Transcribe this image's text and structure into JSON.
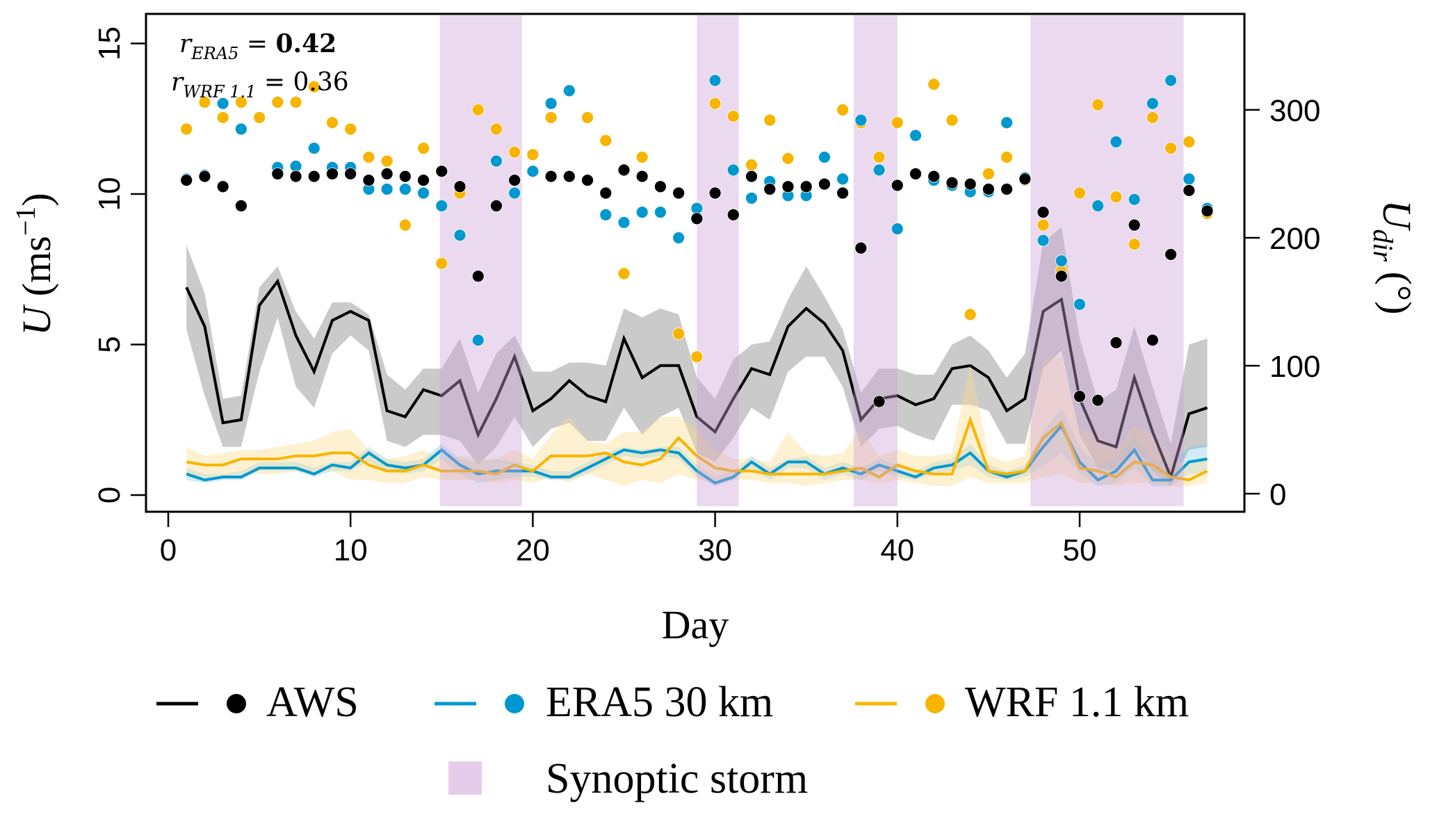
{
  "chart_data": {
    "type": "line",
    "title": "",
    "xlabel": "Day",
    "ylabel": "U (ms⁻¹)",
    "ylabel_right": "U_dir (°)",
    "xlim": [
      -1,
      59.5
    ],
    "ylim": [
      -0.5,
      15.5
    ],
    "ylim_right": [
      -20,
      380
    ],
    "x_ticks": [
      0,
      10,
      20,
      30,
      40,
      50
    ],
    "y_ticks": [
      0,
      5,
      10,
      15
    ],
    "y_ticks_right": [
      0,
      100,
      200,
      300
    ],
    "grid": false,
    "legend_position": "bottom",
    "annotations": [
      {
        "label_base": "r",
        "label_sub": "ERA5",
        "value": "0.42",
        "bold": true
      },
      {
        "label_base": "r",
        "label_sub": "WRF 1.1",
        "value": "0.36",
        "bold": false
      }
    ],
    "storm_periods": [
      [
        14.9,
        19.4
      ],
      [
        29.0,
        31.3
      ],
      [
        37.6,
        40.0
      ],
      [
        47.3,
        55.7
      ]
    ],
    "x": [
      1,
      2,
      3,
      4,
      5,
      6,
      7,
      8,
      9,
      10,
      11,
      12,
      13,
      14,
      15,
      16,
      17,
      18,
      19,
      20,
      21,
      22,
      23,
      24,
      25,
      26,
      27,
      28,
      29,
      30,
      31,
      32,
      33,
      34,
      35,
      36,
      37,
      38,
      39,
      40,
      41,
      42,
      43,
      44,
      45,
      46,
      47,
      48,
      49,
      50,
      51,
      52,
      53,
      54,
      55,
      56,
      57
    ],
    "series": [
      {
        "name": "AWS",
        "color": "#000000",
        "speed": [
          6.9,
          5.6,
          2.4,
          2.5,
          6.3,
          7.1,
          5.3,
          4.1,
          5.8,
          6.1,
          5.8,
          2.8,
          2.6,
          3.5,
          3.3,
          3.8,
          2.0,
          3.2,
          4.6,
          2.8,
          3.2,
          3.8,
          3.3,
          3.1,
          5.2,
          3.9,
          4.3,
          4.3,
          2.6,
          2.1,
          3.2,
          4.2,
          4.0,
          5.6,
          6.2,
          5.7,
          4.8,
          2.5,
          3.2,
          3.3,
          3.0,
          3.2,
          4.2,
          4.3,
          3.9,
          2.8,
          3.2,
          6.1,
          6.5,
          3.2,
          1.8,
          1.6,
          3.9,
          2.1,
          0.6,
          2.7,
          2.9
        ],
        "speed_lower": [
          5.5,
          3.3,
          1.6,
          1.6,
          4.1,
          5.9,
          3.6,
          2.9,
          4.7,
          5.3,
          4.8,
          1.8,
          1.6,
          2.0,
          2.0,
          1.8,
          1.0,
          1.6,
          2.6,
          1.6,
          2.2,
          2.4,
          1.8,
          1.8,
          2.9,
          2.0,
          2.6,
          2.9,
          1.4,
          1.1,
          1.9,
          2.9,
          2.5,
          4.1,
          4.6,
          4.6,
          3.6,
          1.6,
          2.2,
          2.3,
          2.0,
          1.8,
          3.0,
          3.0,
          2.8,
          1.7,
          1.7,
          4.2,
          4.8,
          2.0,
          0.9,
          0.8,
          1.6,
          0.8,
          0.3,
          1.5,
          1.6
        ],
        "speed_upper": [
          8.3,
          6.7,
          3.2,
          3.3,
          6.9,
          7.6,
          6.1,
          5.2,
          6.4,
          6.4,
          6.0,
          4.0,
          3.5,
          4.2,
          4.2,
          5.2,
          3.4,
          4.7,
          5.3,
          4.1,
          4.1,
          4.4,
          4.4,
          4.3,
          6.2,
          5.9,
          6.2,
          6.0,
          3.9,
          3.2,
          4.5,
          5.0,
          5.1,
          6.5,
          7.6,
          6.6,
          5.5,
          3.4,
          4.2,
          4.2,
          4.0,
          4.0,
          5.0,
          5.3,
          4.8,
          3.9,
          4.7,
          8.4,
          8.9,
          5.2,
          3.1,
          3.5,
          5.6,
          3.6,
          1.7,
          5.0,
          5.2
        ],
        "direction": [
          245,
          248,
          240,
          225,
          null,
          250,
          248,
          248,
          250,
          250,
          245,
          250,
          248,
          245,
          252,
          240,
          170,
          225,
          245,
          null,
          248,
          248,
          245,
          235,
          253,
          248,
          240,
          235,
          215,
          235,
          218,
          248,
          238,
          240,
          240,
          242,
          235,
          192,
          72,
          241,
          250,
          248,
          243,
          242,
          238,
          238,
          246,
          220,
          170,
          76,
          73,
          118,
          210,
          120,
          187,
          237,
          221
        ]
      },
      {
        "name": "ERA5 30 km",
        "color": "#0098CF",
        "speed": [
          0.7,
          0.5,
          0.6,
          0.6,
          0.9,
          0.9,
          0.9,
          0.7,
          1.0,
          0.9,
          1.4,
          1.0,
          0.9,
          1.0,
          1.5,
          1.0,
          0.7,
          0.8,
          0.8,
          0.8,
          0.6,
          0.6,
          0.9,
          1.2,
          1.5,
          1.4,
          1.5,
          1.4,
          0.8,
          0.4,
          0.6,
          1.1,
          0.7,
          1.1,
          1.1,
          0.7,
          0.9,
          0.7,
          1.0,
          0.8,
          0.6,
          0.9,
          1.0,
          1.4,
          0.8,
          0.6,
          0.8,
          1.6,
          2.3,
          1.1,
          0.5,
          0.8,
          1.5,
          0.5,
          0.5,
          1.1,
          1.2
        ],
        "speed_lower": [
          0.5,
          0.4,
          0.5,
          0.5,
          0.8,
          0.8,
          0.8,
          0.6,
          0.8,
          0.8,
          1.1,
          0.8,
          0.7,
          0.8,
          1.2,
          0.7,
          0.4,
          0.5,
          0.6,
          0.6,
          0.5,
          0.5,
          0.7,
          1.0,
          1.3,
          1.2,
          1.3,
          1.2,
          0.6,
          0.3,
          0.5,
          0.9,
          0.5,
          0.9,
          0.9,
          0.5,
          0.7,
          0.5,
          0.8,
          0.6,
          0.5,
          0.7,
          0.8,
          1.0,
          0.6,
          0.5,
          0.6,
          1.0,
          1.4,
          0.7,
          0.3,
          0.4,
          0.9,
          0.3,
          0.3,
          0.7,
          0.7
        ],
        "speed_upper": [
          0.9,
          0.7,
          0.7,
          0.8,
          1.1,
          1.1,
          1.1,
          0.9,
          1.1,
          1.1,
          1.6,
          1.2,
          1.1,
          1.2,
          1.7,
          1.2,
          1.1,
          1.2,
          1.1,
          1.0,
          0.8,
          0.8,
          1.1,
          1.4,
          1.6,
          1.5,
          1.6,
          1.6,
          1.0,
          0.6,
          0.8,
          1.3,
          0.9,
          1.2,
          1.3,
          0.9,
          1.1,
          0.9,
          1.2,
          1.0,
          0.8,
          1.1,
          1.2,
          1.7,
          1.0,
          0.8,
          1.0,
          2.1,
          2.9,
          1.6,
          1.0,
          1.2,
          2.0,
          1.2,
          1.1,
          1.6,
          1.7
        ],
        "direction": [
          246,
          249,
          305,
          285,
          null,
          255,
          256,
          270,
          255,
          255,
          238,
          238,
          238,
          235,
          225,
          202,
          120,
          260,
          235,
          252,
          305,
          315,
          null,
          218,
          212,
          220,
          220,
          200,
          223,
          323,
          253,
          231,
          244,
          233,
          233,
          263,
          246,
          292,
          253,
          207,
          280,
          245,
          241,
          236,
          236,
          290,
          247,
          198,
          182,
          148,
          225,
          275,
          230,
          305,
          323,
          246,
          223
        ]
      },
      {
        "name": "WRF 1.1 km",
        "color": "#F7B500",
        "speed": [
          1.1,
          1.0,
          1.0,
          1.2,
          1.2,
          1.2,
          1.3,
          1.3,
          1.4,
          1.4,
          1.0,
          0.8,
          0.8,
          1.0,
          0.8,
          0.8,
          0.8,
          0.7,
          1.0,
          0.8,
          1.3,
          1.3,
          1.3,
          1.4,
          1.1,
          1.0,
          1.2,
          1.9,
          1.3,
          0.9,
          0.8,
          0.8,
          0.7,
          0.7,
          0.7,
          0.7,
          0.8,
          0.9,
          0.6,
          1.0,
          0.8,
          0.7,
          0.7,
          2.5,
          0.8,
          0.7,
          0.8,
          1.9,
          2.4,
          0.9,
          0.8,
          0.6,
          1.1,
          1.0,
          0.6,
          0.5,
          0.8
        ],
        "speed_lower": [
          0.6,
          0.6,
          0.6,
          0.7,
          0.7,
          0.7,
          0.8,
          0.7,
          0.8,
          0.5,
          0.5,
          0.4,
          0.4,
          0.6,
          0.5,
          0.5,
          0.5,
          0.4,
          0.5,
          0.4,
          0.6,
          0.4,
          0.7,
          0.5,
          0.3,
          0.5,
          0.4,
          0.7,
          0.5,
          0.4,
          0.5,
          0.5,
          0.4,
          0.4,
          0.3,
          0.4,
          0.5,
          0.5,
          0.4,
          0.5,
          0.4,
          0.3,
          0.3,
          0.6,
          0.4,
          0.4,
          0.4,
          0.6,
          0.7,
          0.4,
          0.4,
          0.3,
          0.4,
          0.4,
          0.3,
          0.3,
          0.4
        ],
        "speed_upper": [
          1.6,
          1.3,
          1.4,
          1.5,
          1.5,
          1.6,
          1.7,
          1.8,
          2.1,
          2.2,
          1.5,
          1.2,
          1.3,
          1.5,
          1.2,
          1.3,
          1.2,
          1.2,
          1.5,
          1.2,
          2.0,
          2.6,
          1.8,
          1.7,
          2.1,
          2.1,
          2.6,
          2.6,
          2.2,
          1.5,
          1.2,
          1.2,
          1.1,
          2.1,
          1.4,
          1.3,
          1.4,
          2.2,
          1.3,
          1.5,
          1.3,
          1.3,
          1.4,
          4.4,
          1.3,
          1.1,
          1.3,
          4.5,
          4.6,
          2.2,
          2.0,
          1.5,
          2.3,
          2.0,
          1.2,
          1.0,
          1.3
        ],
        "direction": [
          285,
          306,
          294,
          306,
          294,
          306,
          306,
          318,
          290,
          285,
          263,
          260,
          210,
          270,
          180,
          235,
          300,
          285,
          267,
          265,
          294,
          315,
          294,
          276,
          172,
          263,
          null,
          125,
          107,
          305,
          295,
          257,
          292,
          262,
          238,
          263,
          300,
          290,
          263,
          290,
          280,
          320,
          292,
          140,
          250,
          263,
          245,
          210,
          174,
          235,
          304,
          232,
          195,
          294,
          270,
          275,
          219
        ]
      }
    ],
    "legend": [
      {
        "label": "AWS",
        "color": "#000000",
        "kind": "line+point"
      },
      {
        "label": "ERA5 30 km",
        "color": "#0098CF",
        "kind": "line+point"
      },
      {
        "label": "WRF 1.1 km",
        "color": "#F7B500",
        "kind": "line+point"
      },
      {
        "label": "Synoptic storm",
        "color": "#E6CCEB",
        "kind": "patch"
      }
    ]
  }
}
